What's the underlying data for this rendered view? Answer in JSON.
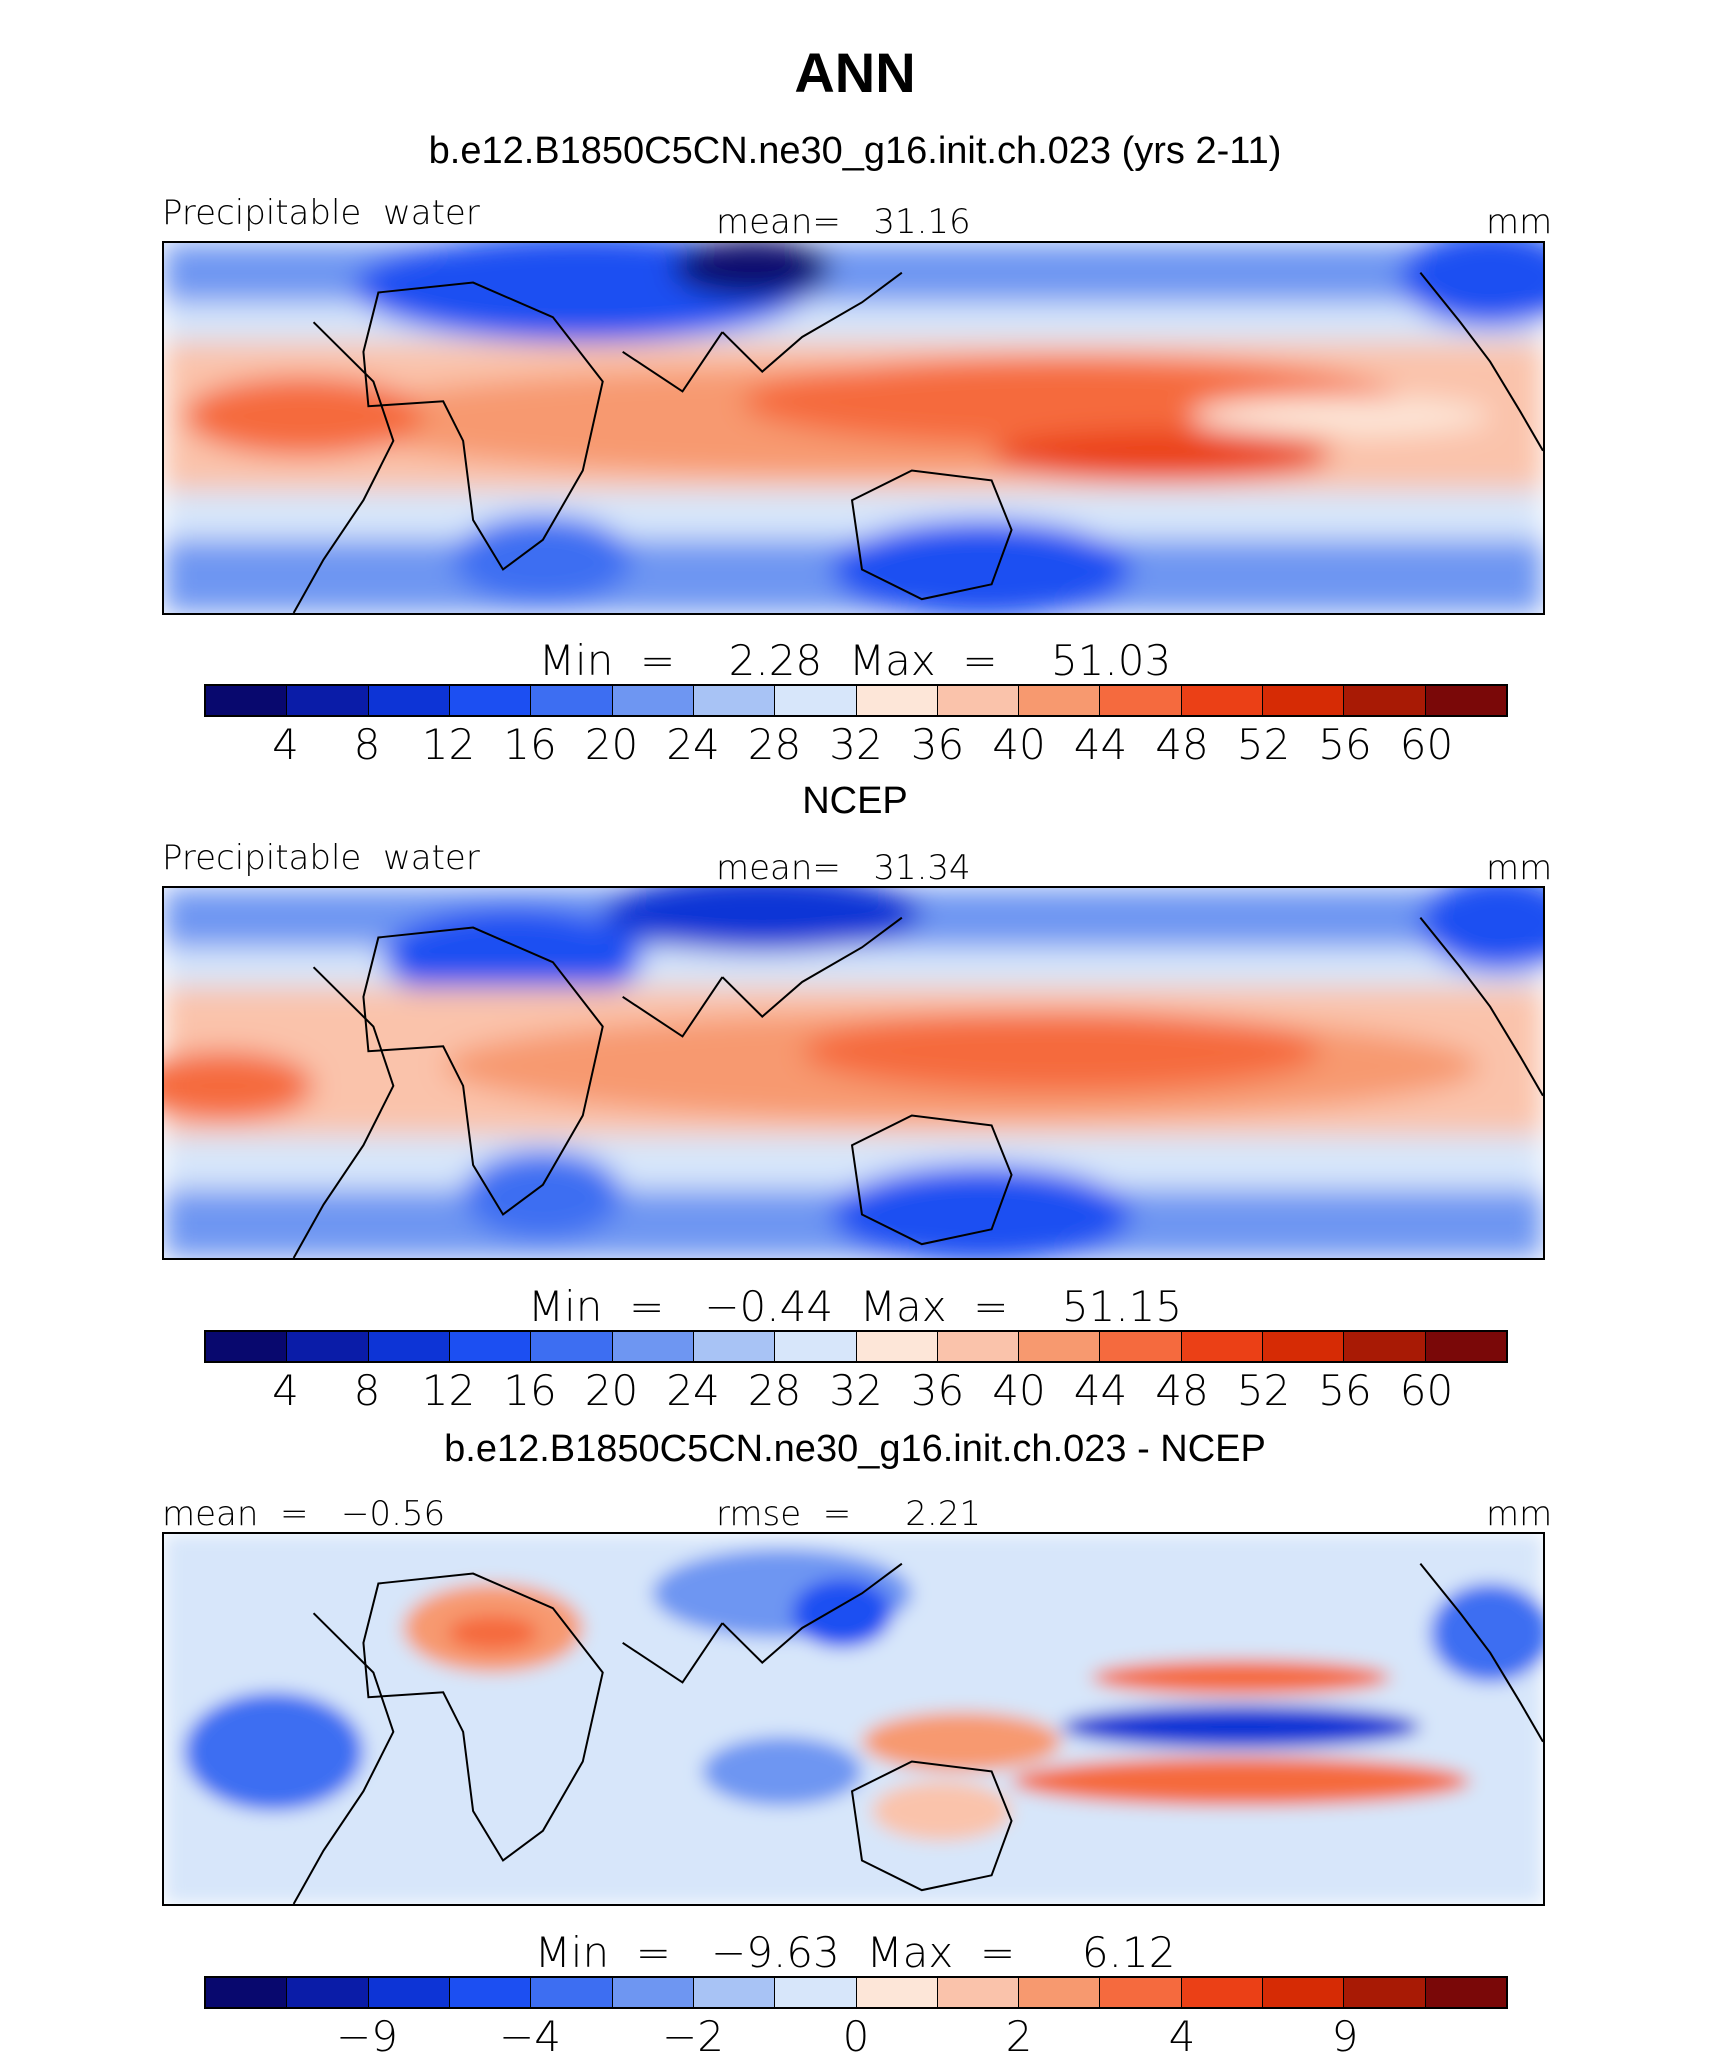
{
  "figure": {
    "title": "ANN",
    "colors_main": [
      "#08086e",
      "#0a1ca8",
      "#0d34d6",
      "#1c4ff2",
      "#3d6ef2",
      "#6e96f2",
      "#a8c3f5",
      "#d7e6fa",
      "#fde6d8",
      "#fac3ab",
      "#f7996f",
      "#f56a3e",
      "#eb4016",
      "#d62b05",
      "#a81a05",
      "#7a0808"
    ],
    "colors_diff": [
      "#08086e",
      "#0a1ca8",
      "#0d34d6",
      "#1c4ff2",
      "#3d6ef2",
      "#6e96f2",
      "#a8c3f5",
      "#d7e6fa",
      "#fde6d8",
      "#fac3ab",
      "#f7996f",
      "#f56a3e",
      "#eb4016",
      "#d62b05",
      "#a81a05",
      "#7a0808"
    ]
  },
  "panels": [
    {
      "title": "b.e12.B1850C5CN.ne30_g16.init.ch.023 (yrs 2-11)",
      "left_label": "Precipitable  water",
      "center_label": "mean=   31.16",
      "right_label": "mm",
      "minmax": "Min  =    2.28  Max  =    51.03"
    },
    {
      "title": "NCEP",
      "left_label": "Precipitable  water",
      "center_label": "mean=   31.34",
      "right_label": "mm",
      "minmax": "Min  =   −0.44  Max  =    51.15"
    },
    {
      "title": "b.e12.B1850C5CN.ne30_g16.init.ch.023 - NCEP",
      "left_label": "mean  =   −0.56",
      "center_label": "rmse  =     2.21",
      "right_label": "mm",
      "minmax": "Min  =   −9.63  Max  =     6.12"
    }
  ],
  "chart_data": [
    {
      "type": "heatmap",
      "subtitle": "b.e12.B1850C5CN.ne30_g16.init.ch.023 (yrs 2-11)",
      "variable": "Precipitable water",
      "units": "mm",
      "mean": 31.16,
      "min": 2.28,
      "max": 51.03,
      "levels": [
        4,
        8,
        12,
        16,
        20,
        24,
        28,
        32,
        36,
        40,
        44,
        48,
        52,
        56,
        60
      ],
      "tick_labels": [
        "4",
        "8",
        "12",
        "16",
        "20",
        "24",
        "28",
        "32",
        "36",
        "40",
        "44",
        "48",
        "52",
        "56",
        "60"
      ]
    },
    {
      "type": "heatmap",
      "subtitle": "NCEP",
      "variable": "Precipitable water",
      "units": "mm",
      "mean": 31.34,
      "min": -0.44,
      "max": 51.15,
      "levels": [
        4,
        8,
        12,
        16,
        20,
        24,
        28,
        32,
        36,
        40,
        44,
        48,
        52,
        56,
        60
      ],
      "tick_labels": [
        "4",
        "8",
        "12",
        "16",
        "20",
        "24",
        "28",
        "32",
        "36",
        "40",
        "44",
        "48",
        "52",
        "56",
        "60"
      ]
    },
    {
      "type": "heatmap",
      "subtitle": "b.e12.B1850C5CN.ne30_g16.init.ch.023 - NCEP",
      "units": "mm",
      "mean": -0.56,
      "rmse": 2.21,
      "min": -9.63,
      "max": 6.12,
      "levels": [
        -9,
        -4,
        -2,
        0,
        2,
        4,
        9
      ],
      "tick_labels": [
        "−9",
        "−4",
        "−2",
        "0",
        "2",
        "4",
        "9"
      ]
    }
  ]
}
